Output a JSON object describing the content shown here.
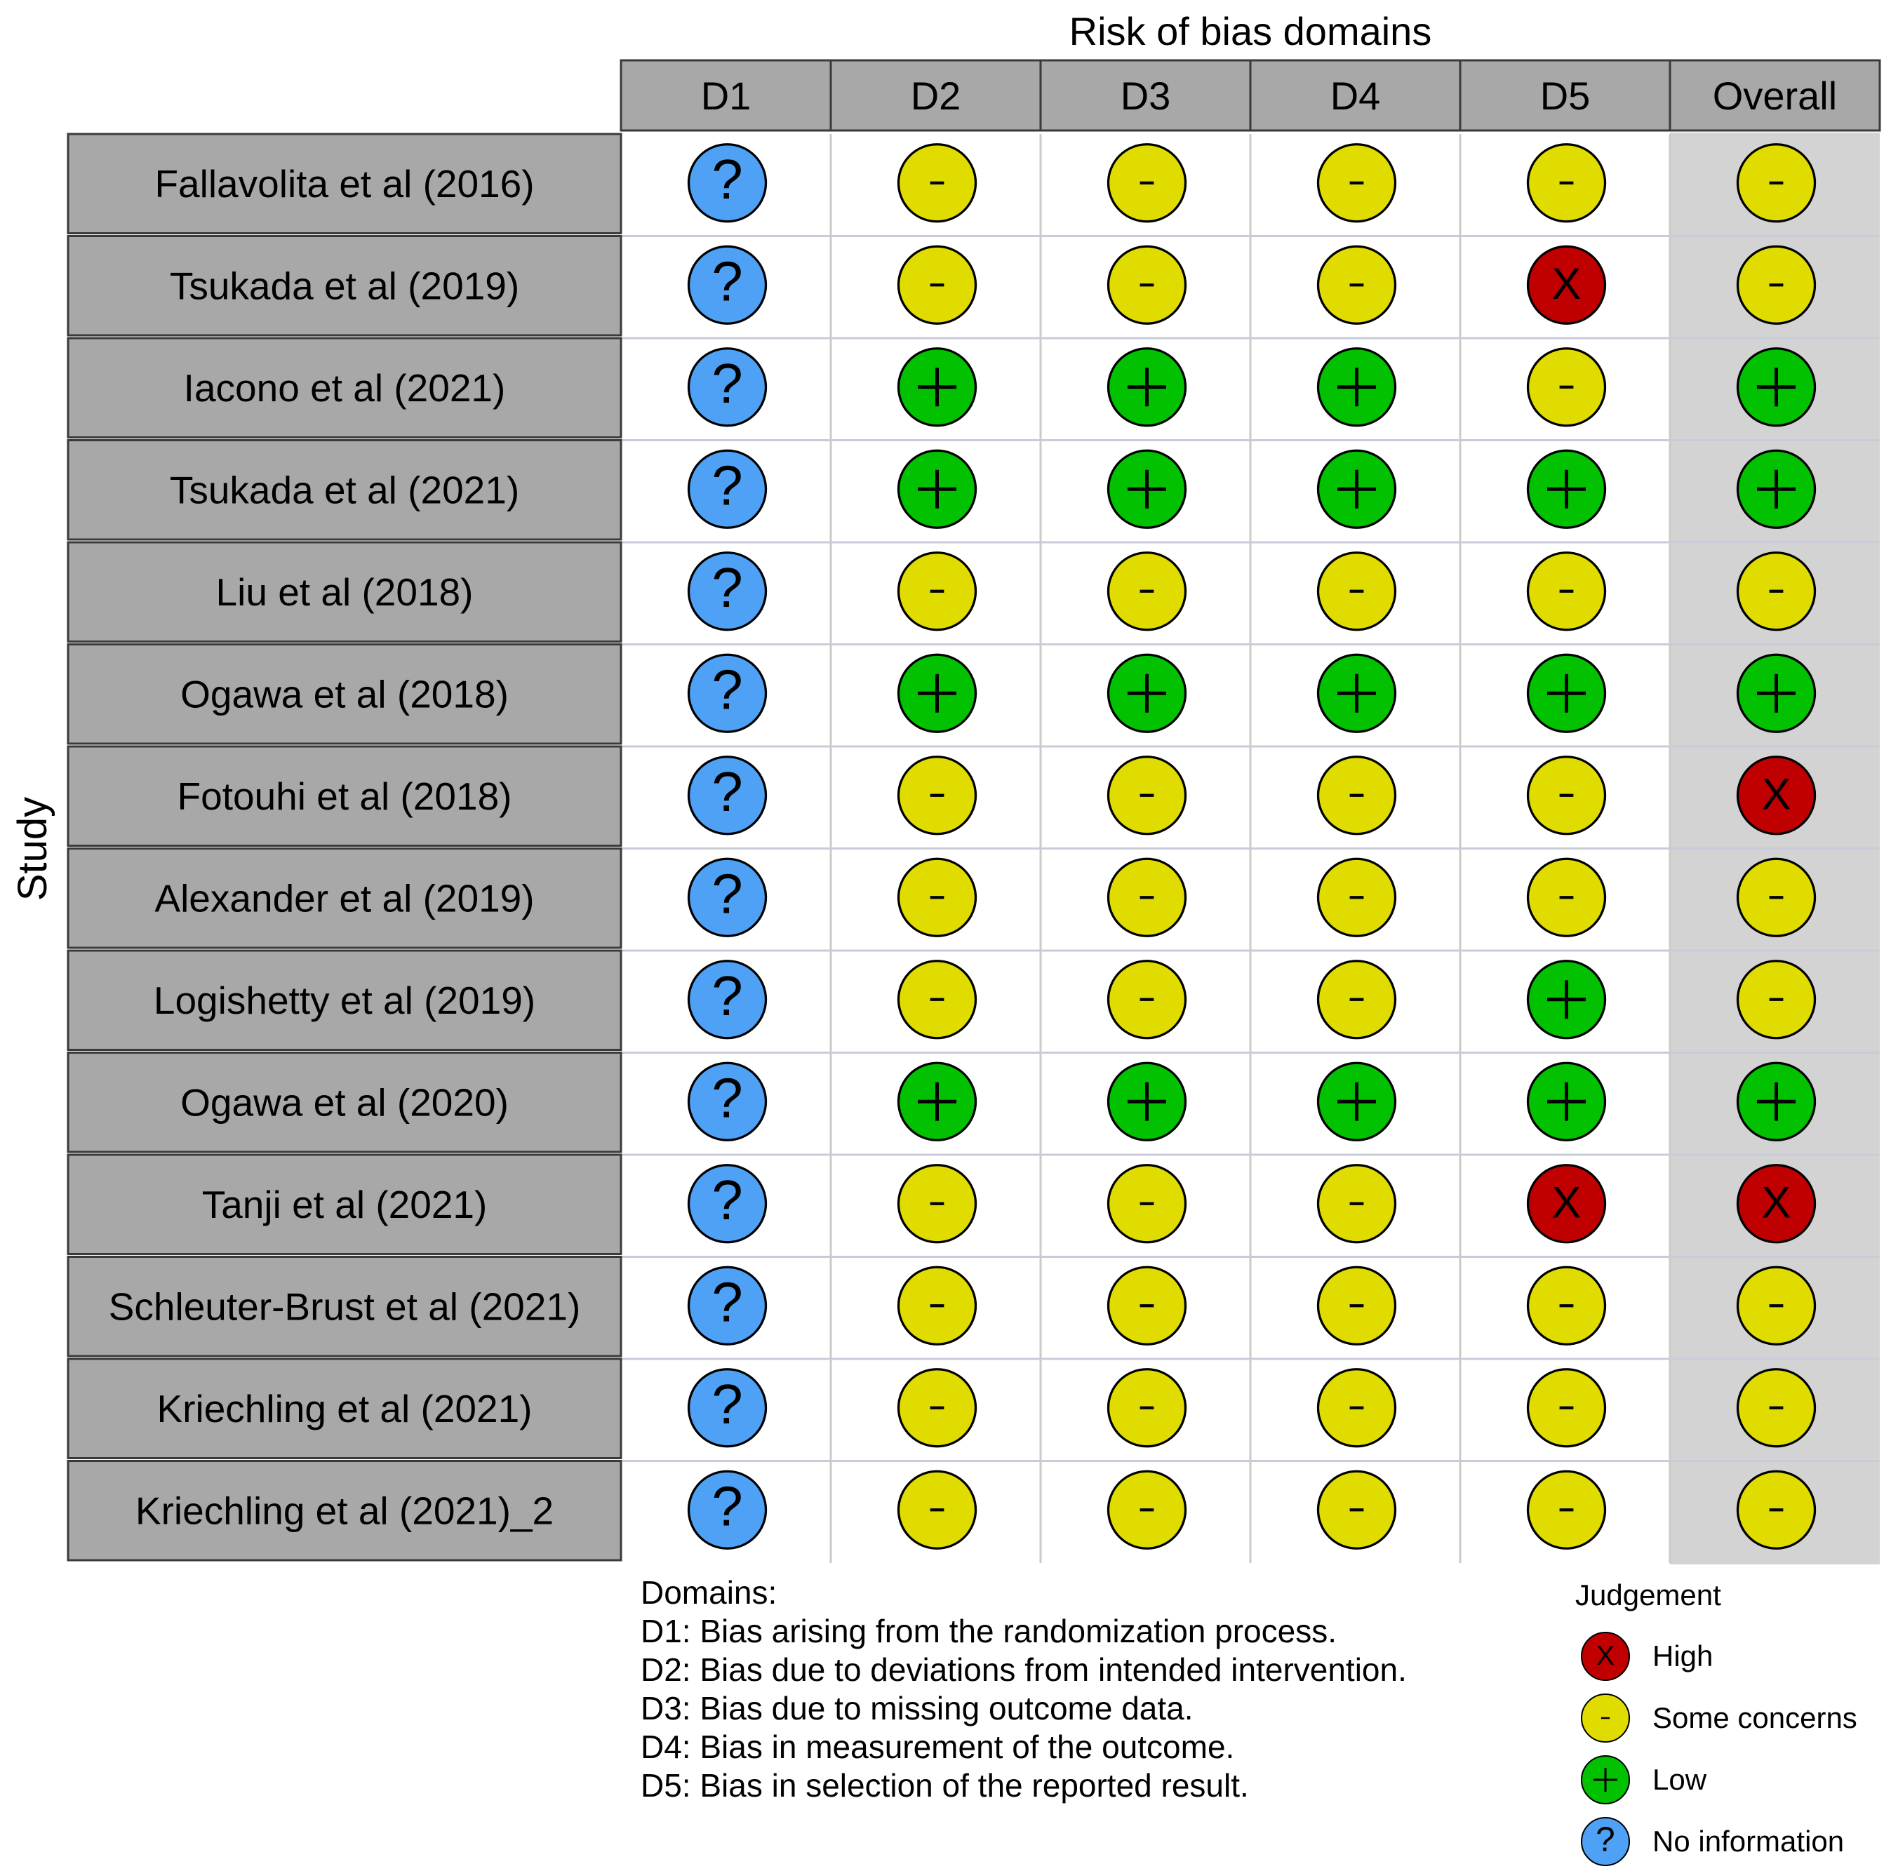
{
  "chart_data": {
    "type": "table",
    "title": "Risk of bias domains",
    "y_axis_label": "Study",
    "domains": [
      "D1",
      "D2",
      "D3",
      "D4",
      "D5",
      "Overall"
    ],
    "studies": [
      "Fallavolita et al (2016)",
      "Tsukada et al (2019)",
      "Iacono et al (2021)",
      "Tsukada et al (2021)",
      "Liu et al (2018)",
      "Ogawa et al (2018)",
      "Fotouhi et al (2018)",
      "Alexander et al (2019)",
      "Logishetty et al (2019)",
      "Ogawa et al (2020)",
      "Tanji et al (2021)",
      "Schleuter-Brust et al (2021)",
      "Kriechling et al (2021)",
      "Kriechling et al (2021)_2"
    ],
    "judgements": [
      [
        "no_info",
        "some",
        "some",
        "some",
        "some",
        "some"
      ],
      [
        "no_info",
        "some",
        "some",
        "some",
        "high",
        "some"
      ],
      [
        "no_info",
        "low",
        "low",
        "low",
        "some",
        "low"
      ],
      [
        "no_info",
        "low",
        "low",
        "low",
        "low",
        "low"
      ],
      [
        "no_info",
        "some",
        "some",
        "some",
        "some",
        "some"
      ],
      [
        "no_info",
        "low",
        "low",
        "low",
        "low",
        "low"
      ],
      [
        "no_info",
        "some",
        "some",
        "some",
        "some",
        "high"
      ],
      [
        "no_info",
        "some",
        "some",
        "some",
        "some",
        "some"
      ],
      [
        "no_info",
        "some",
        "some",
        "some",
        "low",
        "some"
      ],
      [
        "no_info",
        "low",
        "low",
        "low",
        "low",
        "low"
      ],
      [
        "no_info",
        "some",
        "some",
        "some",
        "high",
        "high"
      ],
      [
        "no_info",
        "some",
        "some",
        "some",
        "some",
        "some"
      ],
      [
        "no_info",
        "some",
        "some",
        "some",
        "some",
        "some"
      ],
      [
        "no_info",
        "some",
        "some",
        "some",
        "some",
        "some"
      ]
    ],
    "judgement_styles": {
      "high": {
        "symbol": "X",
        "color": "#c00000"
      },
      "some": {
        "symbol": "-",
        "color": "#e1dc00"
      },
      "low": {
        "symbol": "+",
        "color": "#02c100"
      },
      "no_info": {
        "symbol": "?",
        "color": "#4ea1f5"
      }
    },
    "domains_caption": {
      "heading": "Domains:",
      "lines": [
        "D1: Bias arising from the randomization process.",
        "D2: Bias due to deviations from intended intervention.",
        "D3: Bias due to missing outcome data.",
        "D4: Bias in measurement of the outcome.",
        "D5: Bias in selection of the reported result."
      ]
    },
    "legend": {
      "title": "Judgement",
      "position": "bottom-right",
      "items": [
        {
          "key": "high",
          "label": "High"
        },
        {
          "key": "some",
          "label": "Some concerns"
        },
        {
          "key": "low",
          "label": "Low"
        },
        {
          "key": "no_info",
          "label": "No information"
        }
      ]
    }
  }
}
